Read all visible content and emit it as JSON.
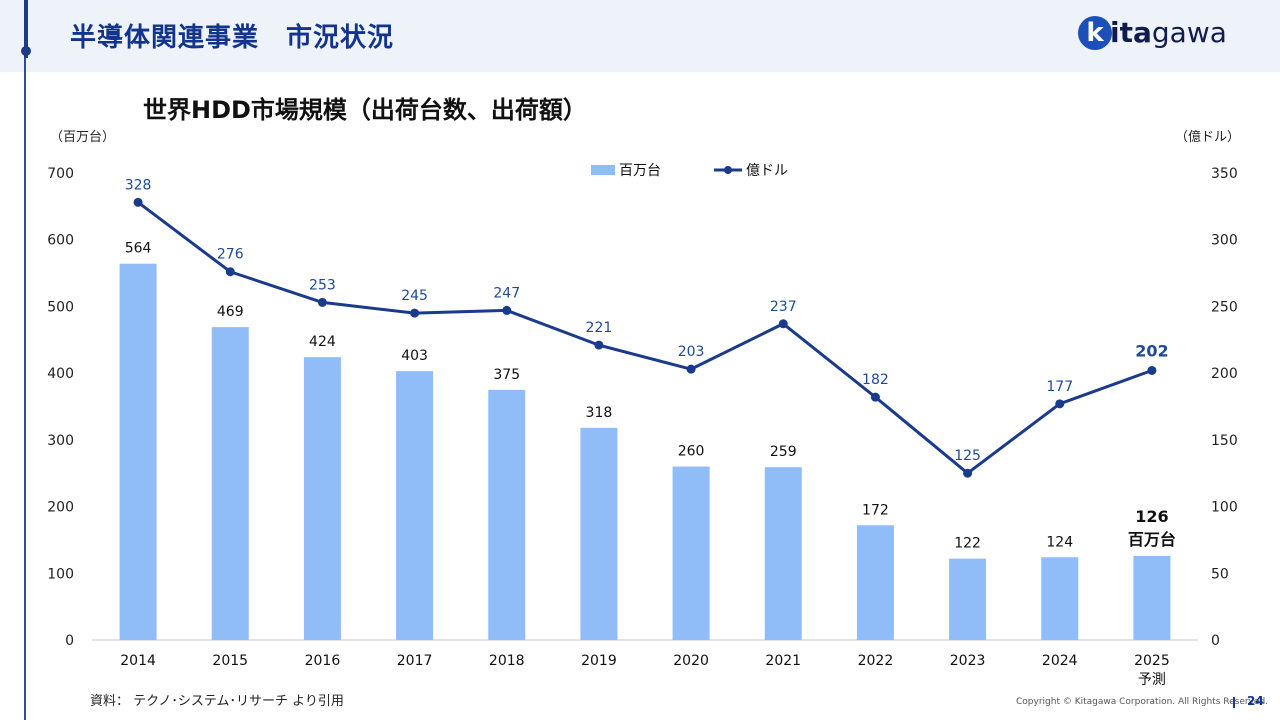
{
  "header": {
    "title": "半導体関連事業　市況状況",
    "logo_initial": "k",
    "logo_rest_bold": "ita",
    "logo_rest": "gawa"
  },
  "chart_data": {
    "type": "bar",
    "title": "世界HDD市場規模（出荷台数、出荷額）",
    "y_left_unit": "（百万台）",
    "y_right_unit": "（億ドル）",
    "categories": [
      "2014",
      "2015",
      "2016",
      "2017",
      "2018",
      "2019",
      "2020",
      "2021",
      "2022",
      "2023",
      "2024",
      "2025"
    ],
    "category_sublabels": [
      "",
      "",
      "",
      "",
      "",
      "",
      "",
      "",
      "",
      "",
      "",
      "予測"
    ],
    "ylim_left": [
      0,
      700
    ],
    "ylim_right": [
      0,
      350
    ],
    "left_ticks": [
      0,
      100,
      200,
      300,
      400,
      500,
      600,
      700
    ],
    "right_ticks": [
      0,
      50,
      100,
      150,
      200,
      250,
      300,
      350
    ],
    "legend_position": "top-center",
    "grid": false,
    "series": [
      {
        "name": "百万台",
        "type": "bar",
        "axis": "left",
        "color": "#90bdf8",
        "values": [
          564,
          469,
          424,
          403,
          375,
          318,
          260,
          259,
          172,
          122,
          124,
          126
        ],
        "last_label_unit": "百万台"
      },
      {
        "name": "億ドル",
        "type": "line",
        "axis": "right",
        "color": "#1a3a8c",
        "values": [
          328,
          276,
          253,
          245,
          247,
          221,
          203,
          237,
          182,
          125,
          177,
          202
        ]
      }
    ]
  },
  "footer": {
    "source": "資料：  テクノ･システム･リサーチ  より引用",
    "copyright": "Copyright © Kitagawa Corporation. All Rights Reserved.",
    "page_number": "24"
  }
}
